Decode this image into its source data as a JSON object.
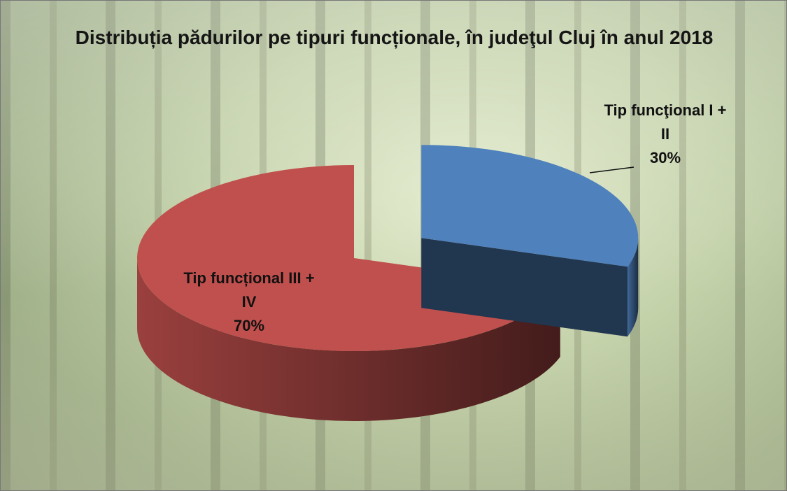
{
  "chart_data": {
    "type": "pie3d",
    "title": "Distribuția pădurilor pe tipuri funcționale, în judeţul Cluj în anul 2018",
    "categories": [
      "Tip funcţional I + II",
      "Tip funcțional III + IV"
    ],
    "values": [
      30,
      70
    ],
    "value_labels": [
      "30%",
      "70%"
    ],
    "colors": [
      "#4f81bd",
      "#c0504d"
    ]
  }
}
